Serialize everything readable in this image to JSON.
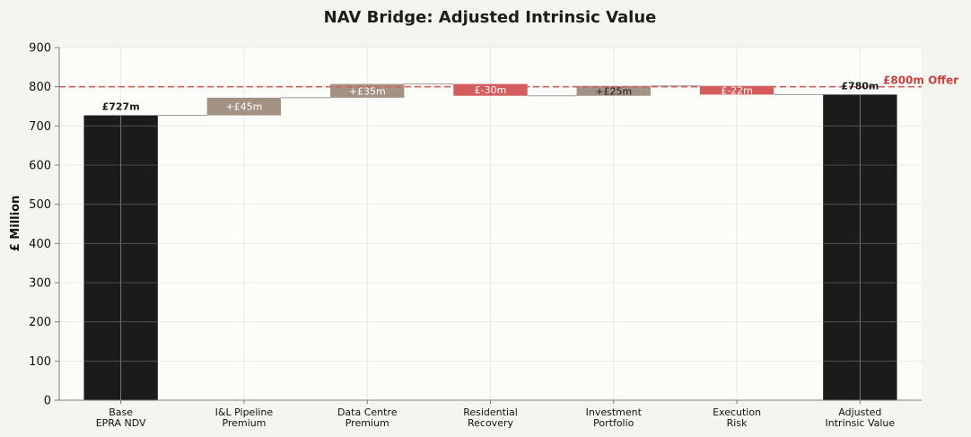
{
  "chart_data": {
    "type": "bar",
    "subtype": "waterfall",
    "title": "NAV Bridge: Adjusted Intrinsic Value",
    "xlabel": "",
    "ylabel": "£ Million",
    "ylim": [
      0,
      900
    ],
    "yticks": [
      "0",
      "100",
      "200",
      "300",
      "400",
      "500",
      "600",
      "700",
      "800",
      "900"
    ],
    "grid": true,
    "categories": [
      [
        "Base",
        "EPRA NDV"
      ],
      [
        "I&L Pipeline",
        "Premium"
      ],
      [
        "Data Centre",
        "Premium"
      ],
      [
        "Residential",
        "Recovery"
      ],
      [
        "Investment",
        "Portfolio"
      ],
      [
        "Execution",
        "Risk"
      ],
      [
        "Adjusted",
        "Intrinsic Value"
      ]
    ],
    "bars": [
      {
        "kind": "total",
        "start": 0,
        "end": 727,
        "label": "£727m"
      },
      {
        "kind": "increase",
        "start": 727,
        "end": 772,
        "label": "+£45m"
      },
      {
        "kind": "increase",
        "start": 772,
        "end": 807,
        "label": "+£35m"
      },
      {
        "kind": "decrease",
        "start": 807,
        "end": 777,
        "label": "£-30m"
      },
      {
        "kind": "increase",
        "start": 777,
        "end": 802,
        "label": "+£25m"
      },
      {
        "kind": "decrease",
        "start": 802,
        "end": 780,
        "label": "£-22m"
      },
      {
        "kind": "total",
        "start": 0,
        "end": 780,
        "label": "£780m"
      }
    ],
    "reference_line": {
      "value": 800,
      "label": "£800m Offer"
    },
    "colors": {
      "total": "#1b1b1b",
      "increase": "#a39384",
      "decrease": "#d45c5c",
      "reference": "#d06060",
      "reference_text": "#c84040",
      "connector": "#999999",
      "axis": "#8a7a72",
      "grid": "#e6e6e0",
      "background": "#f4f5ef",
      "plot_background": "#fcfcf9"
    }
  }
}
